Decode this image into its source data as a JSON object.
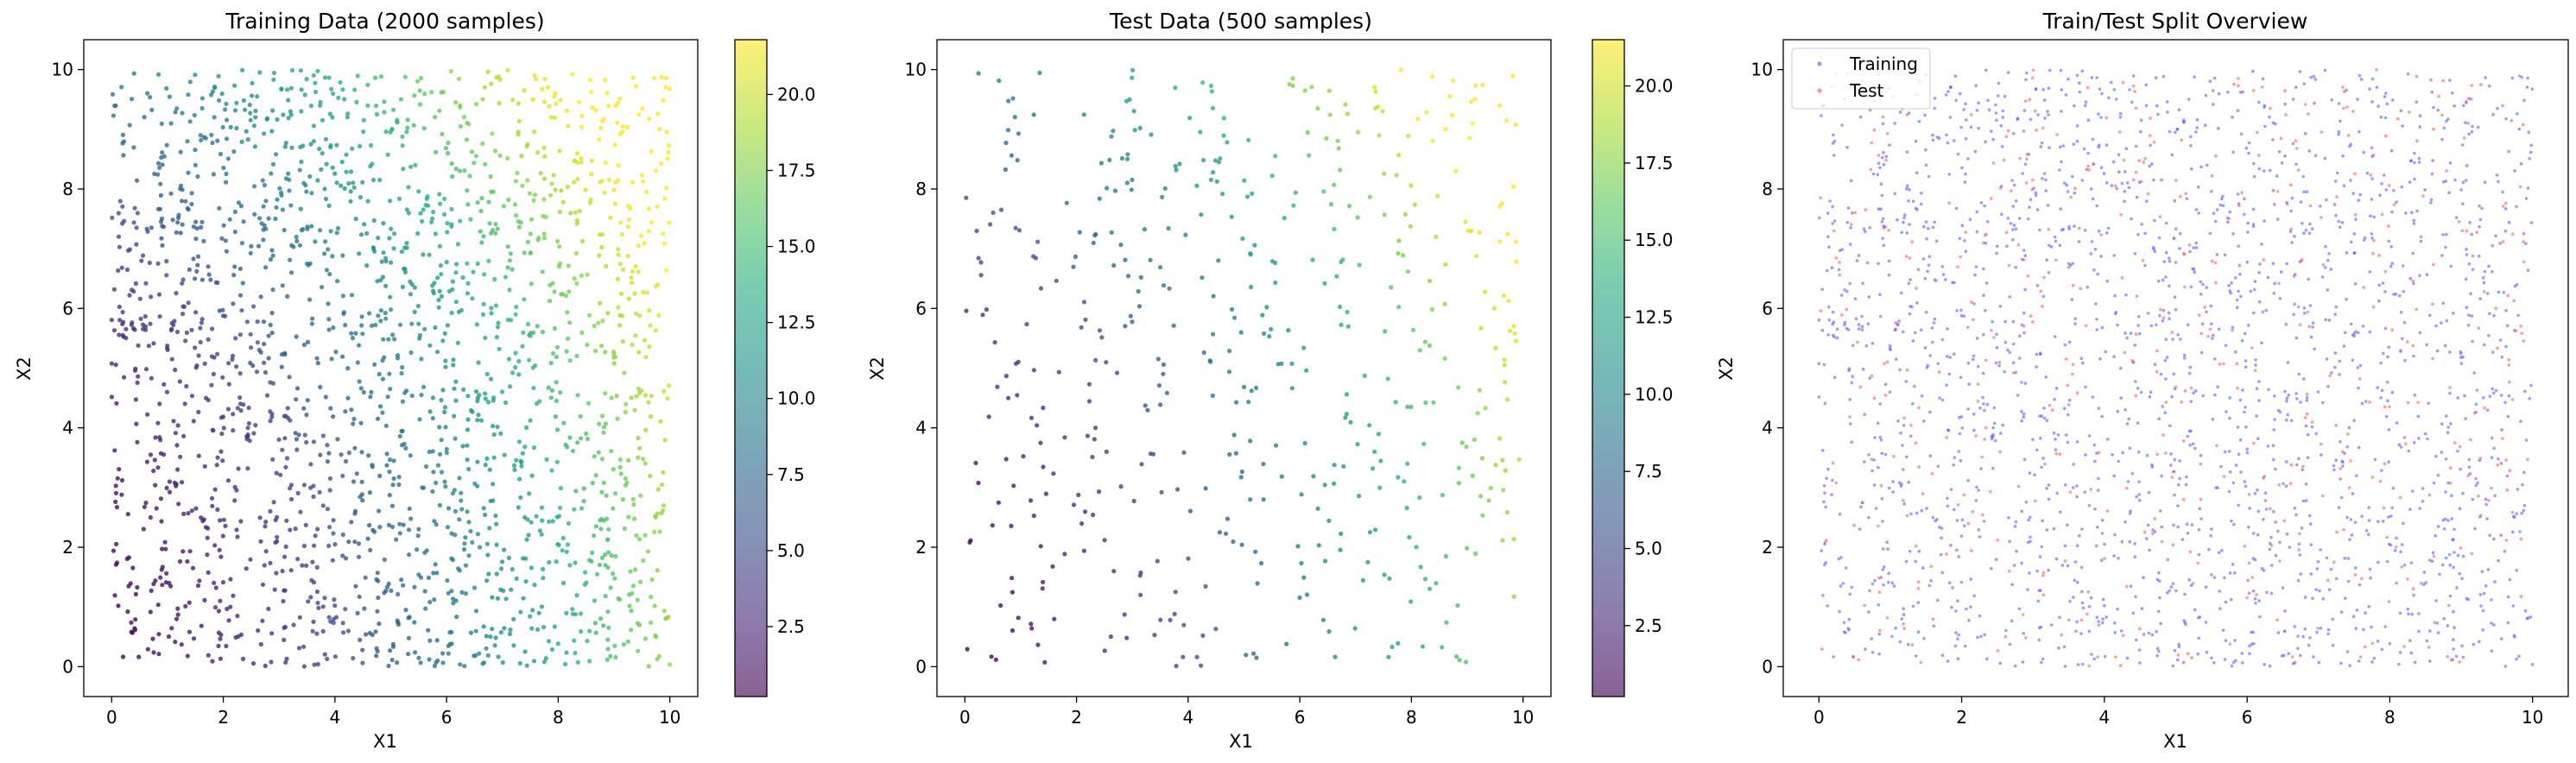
{
  "chart_data": [
    {
      "type": "scatter",
      "title": "Training Data (2000 samples)",
      "xlabel": "X1",
      "ylabel": "X2",
      "xlim": [
        -0.5,
        10.5
      ],
      "ylim": [
        -0.5,
        10.5
      ],
      "xticks": [
        "0",
        "2",
        "4",
        "6",
        "8",
        "10"
      ],
      "yticks": [
        "0",
        "2",
        "4",
        "6",
        "8",
        "10"
      ],
      "n_points": 2000,
      "colormap": "viridis",
      "point_alpha": 0.8,
      "colorbar": {
        "range": [
          0.2,
          21.8
        ],
        "ticks": [
          "2.5",
          "5.0",
          "7.5",
          "10.0",
          "12.5",
          "15.0",
          "17.5",
          "20.0"
        ]
      },
      "grid": false,
      "color_relation": "color increases with X1 and X2 (value ≈ 0.13·(X1²+X2²)·0.9 + X1)"
    },
    {
      "type": "scatter",
      "title": "Test Data (500 samples)",
      "xlabel": "X1",
      "ylabel": "X2",
      "xlim": [
        -0.5,
        10.5
      ],
      "ylim": [
        -0.5,
        10.5
      ],
      "xticks": [
        "0",
        "2",
        "4",
        "6",
        "8",
        "10"
      ],
      "yticks": [
        "0",
        "2",
        "4",
        "6",
        "8",
        "10"
      ],
      "n_points": 500,
      "colormap": "viridis",
      "point_alpha": 0.8,
      "colorbar": {
        "range": [
          0.2,
          21.5
        ],
        "ticks": [
          "2.5",
          "5.0",
          "7.5",
          "10.0",
          "12.5",
          "15.0",
          "17.5",
          "20.0"
        ]
      },
      "grid": false
    },
    {
      "type": "scatter",
      "title": "Train/Test Split Overview",
      "xlabel": "X1",
      "ylabel": "X2",
      "xlim": [
        -0.5,
        10.5
      ],
      "ylim": [
        -0.5,
        10.5
      ],
      "xticks": [
        "0",
        "2",
        "4",
        "6",
        "8",
        "10"
      ],
      "yticks": [
        "0",
        "2",
        "4",
        "6",
        "8",
        "10"
      ],
      "legend_position": "top-left",
      "grid": false,
      "series": [
        {
          "name": "Training",
          "color": "#4c4cff",
          "n_points": 2000
        },
        {
          "name": "Test",
          "color": "#ff4c4c",
          "n_points": 500
        }
      ]
    }
  ]
}
